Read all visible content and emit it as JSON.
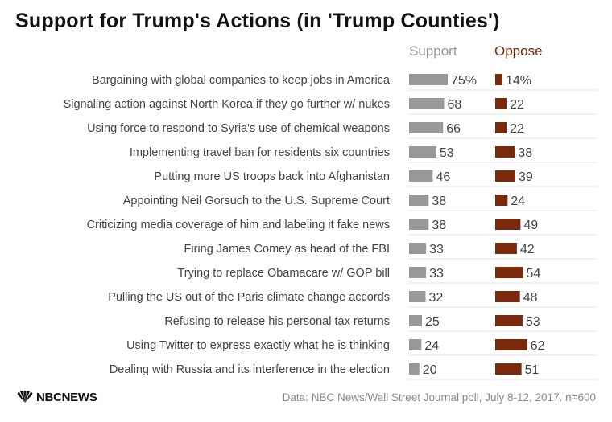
{
  "title": "Support for Trump's Actions (in 'Trump Counties')",
  "source": "Data: NBC News/Wall Street Journal poll, July 8-12, 2017. n=600",
  "logo_text": "NBCNEWS",
  "logo_icon": "nbc-peacock-icon",
  "colors": {
    "support": "#999999",
    "oppose": "#7a2a0c",
    "support_header": "#999999",
    "oppose_header": "#7a2a0c",
    "divider": "#e3e3e3"
  },
  "chart_data": {
    "type": "bar",
    "title": "Support for Trump's Actions (in 'Trump Counties')",
    "categories": [
      "Bargaining with global companies to keep jobs in America",
      "Signaling action against North Korea if they go further w/ nukes",
      "Using force to respond to Syria's use of chemical weapons",
      "Implementing travel ban for residents six countries",
      "Putting more US troops back into Afghanistan ",
      "Appointing Neil Gorsuch to the U.S. Supreme Court",
      "Criticizing media coverage of him and labeling it fake news",
      "Firing James Comey as head of the FBI",
      "Trying to replace Obamacare w/ GOP bill",
      "Pulling the US out of the Paris climate change accords",
      "Refusing to release his personal tax returns",
      "Using Twitter to express exactly what he is thinking ",
      "Dealing with Russia and its interference in the election"
    ],
    "series": [
      {
        "name": "Support",
        "values": [
          75,
          68,
          66,
          53,
          46,
          38,
          38,
          33,
          33,
          32,
          25,
          24,
          20
        ],
        "labels": [
          "75%",
          "68",
          "66",
          "53",
          "46",
          "38",
          "38",
          "33",
          "33",
          "32",
          "25",
          "24",
          "20"
        ]
      },
      {
        "name": "Oppose",
        "values": [
          14,
          22,
          22,
          38,
          39,
          24,
          49,
          42,
          54,
          48,
          53,
          62,
          51
        ],
        "labels": [
          "14%",
          "22",
          "22",
          "38",
          "39",
          "24",
          "49",
          "42",
          "54",
          "48",
          "53",
          "62",
          "51"
        ]
      }
    ],
    "xlim": [
      0,
      100
    ],
    "legend": "column headers above bars"
  }
}
